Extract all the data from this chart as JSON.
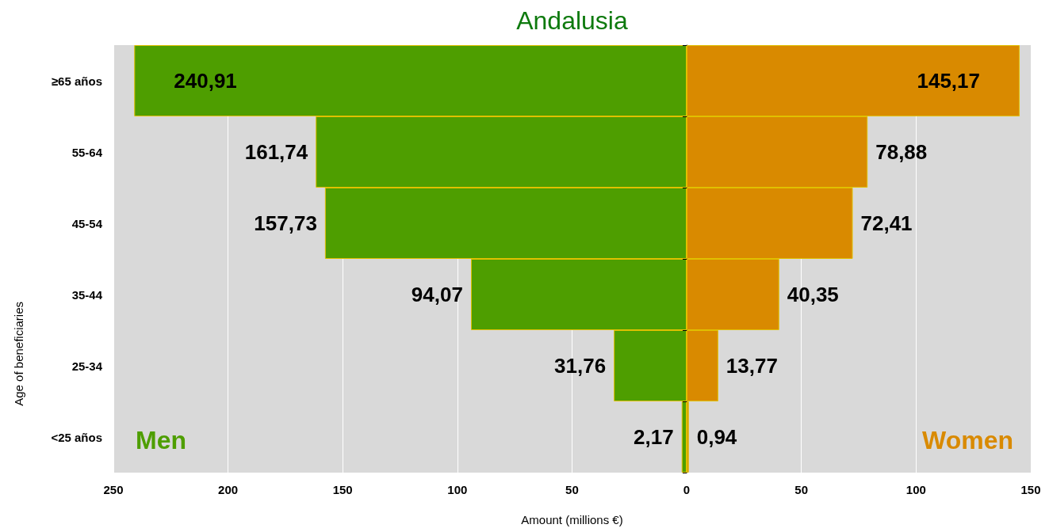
{
  "chart_data": [
    {
      "type": "bar",
      "orientation": "horizontal",
      "title": "Andalusia",
      "ylabel": "Age of beneficiaries",
      "categories": [
        "≥65 años",
        "55-64",
        "45-54",
        "35-44",
        "25-34",
        "<25 años"
      ],
      "series": [
        {
          "name": "Men",
          "color": "#4e9e00",
          "values": [
            240.91,
            161.74,
            157.73,
            94.07,
            31.76,
            2.17
          ],
          "value_labels": [
            "240,91",
            "161,74",
            "157,73",
            "94,07",
            "31,76",
            "2,17"
          ]
        }
      ],
      "xlim": [
        250,
        0
      ],
      "xticks": [
        250,
        200,
        150,
        100,
        50
      ],
      "grid": "x",
      "legend": false
    },
    {
      "type": "bar",
      "orientation": "horizontal",
      "xlabel": "Amount (millions €)",
      "categories": [
        null,
        null,
        null,
        null,
        null,
        null
      ],
      "series": [
        {
          "name": "Women",
          "color": "#d98a00",
          "values": [
            145.17,
            78.88,
            72.41,
            40.35,
            13.77,
            0.94
          ],
          "value_labels": [
            "145,17",
            "78,88",
            "72,41",
            "40,35",
            "13,77",
            "0,94"
          ]
        }
      ],
      "xlim": [
        0,
        150
      ],
      "xticks": [
        0,
        50,
        100,
        150
      ],
      "grid": "x",
      "legend": false,
      "tick_labels": "x"
    }
  ]
}
